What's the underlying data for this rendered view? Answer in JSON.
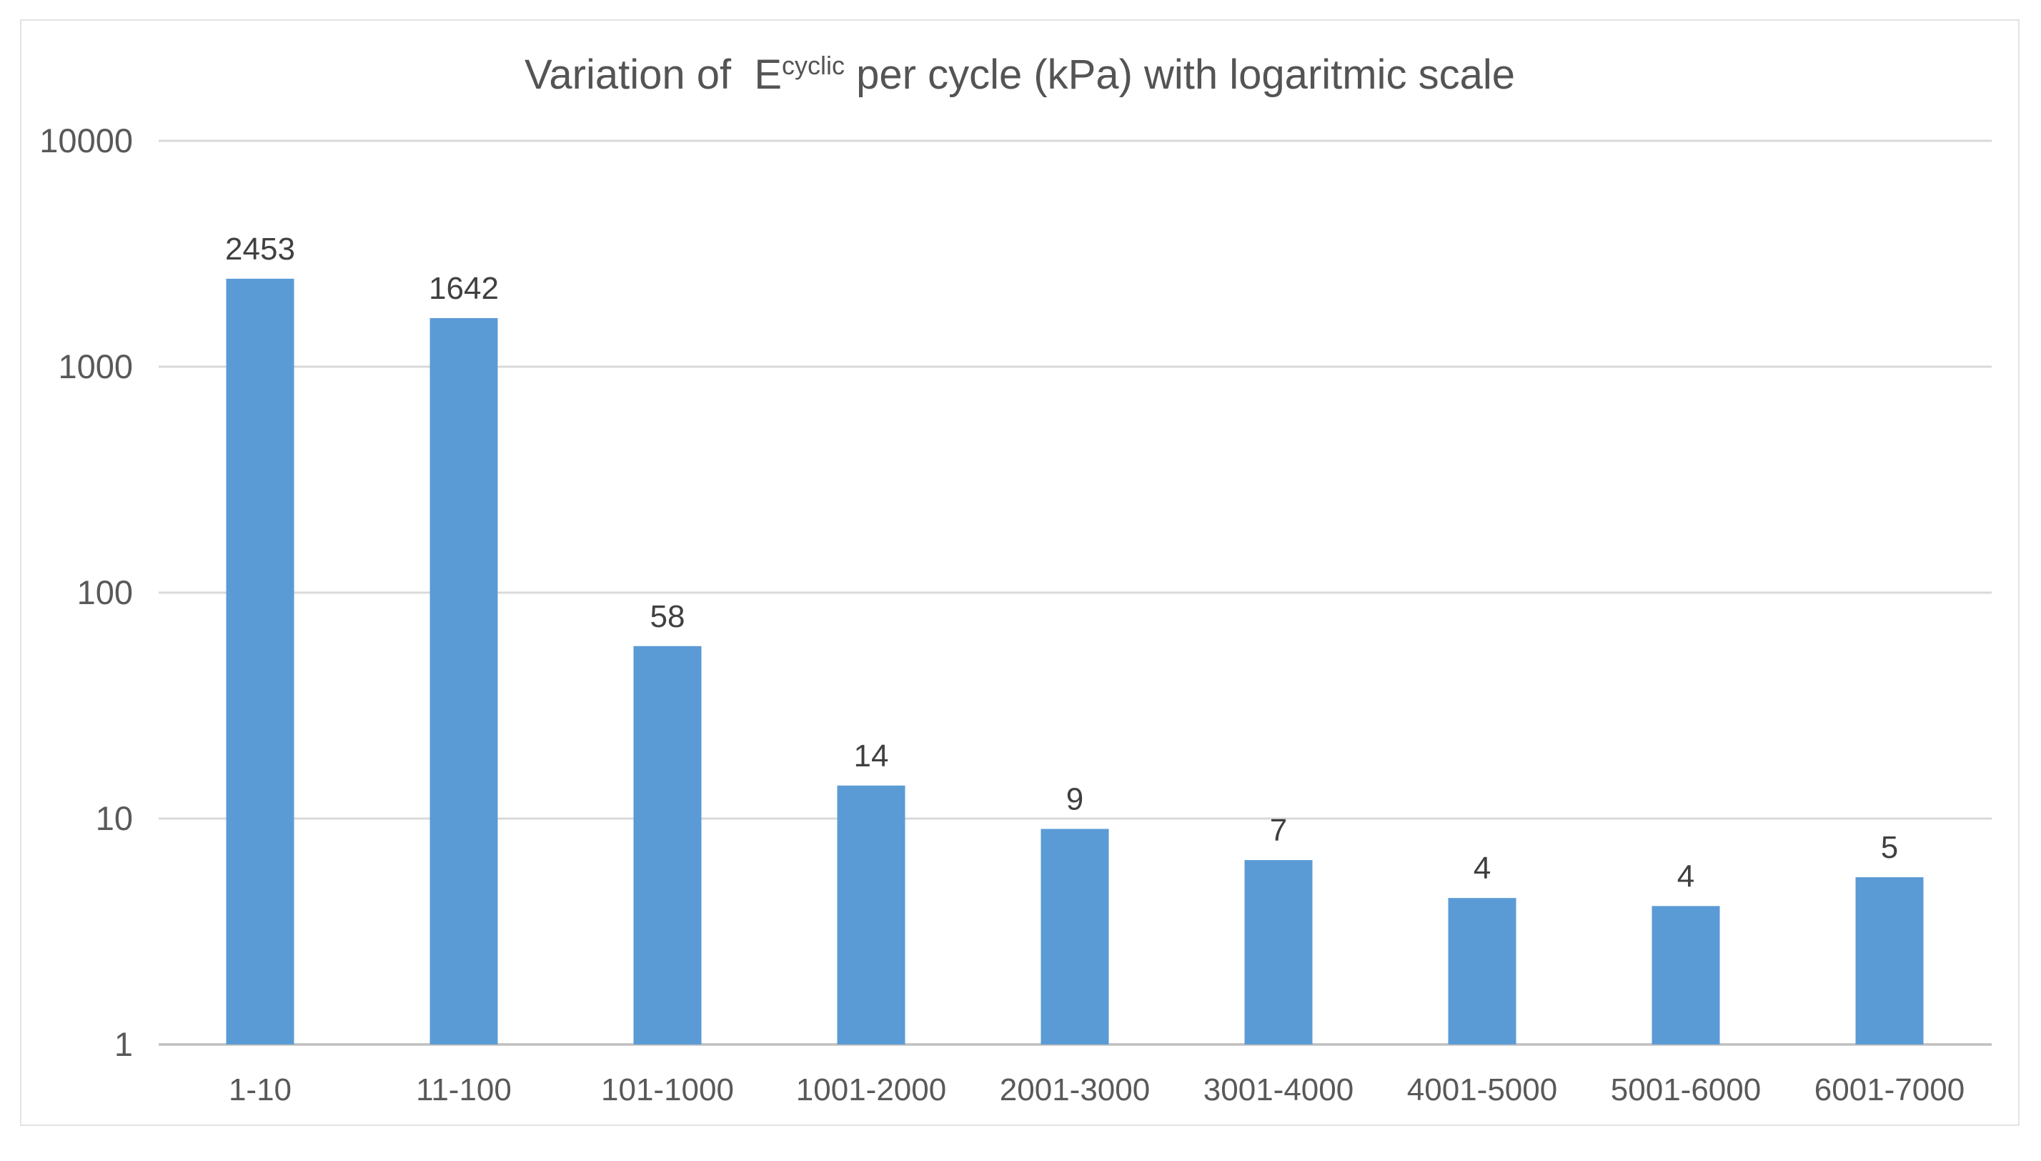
{
  "title": {
    "prefix": "Variation of  E",
    "superscript": "cyclic",
    "suffix": " per cycle (kPa) with logaritmic scale"
  },
  "chart_data": {
    "type": "bar",
    "title": "Variation of E^cyclic per cycle (kPa) with logaritmic scale",
    "categories": [
      "1-10",
      "11-100",
      "101-1000",
      "1001-2000",
      "2001-3000",
      "3001-4000",
      "4001-5000",
      "5001-6000",
      "6001-7000"
    ],
    "values": [
      2453,
      1642,
      58,
      14,
      9,
      7,
      4,
      4,
      5
    ],
    "data_labels": [
      "2453",
      "1642",
      "58",
      "14",
      "9",
      "7",
      "4",
      "4",
      "5"
    ],
    "bar_render_values": [
      2453,
      1642,
      58,
      14,
      9,
      6.55,
      4.45,
      4.1,
      5.5
    ],
    "xlabel": "",
    "ylabel": "",
    "yscale": "log",
    "ylim": [
      1,
      10000
    ],
    "yticks": [
      10000,
      1000,
      100,
      10,
      1
    ],
    "ytick_labels": [
      "10000",
      "1000",
      "100",
      "10",
      "1"
    ],
    "grid": true,
    "legend": false,
    "colors": {
      "bar": "#5B9BD5",
      "gridline": "#D9D9D9",
      "axis_line": "#BFBFBF",
      "tick_label": "#595959",
      "data_label": "#404040",
      "title": "#545454",
      "frame_border": "#E3E3E3",
      "background": "#FFFFFF"
    }
  }
}
